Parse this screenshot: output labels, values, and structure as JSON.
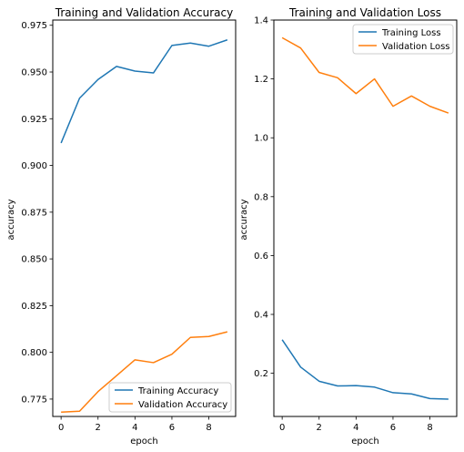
{
  "chart_data": [
    {
      "type": "line",
      "title": "Training and Validation Accuracy",
      "xlabel": "epoch",
      "ylabel": "accuracy",
      "x": [
        0,
        1,
        2,
        3,
        4,
        5,
        6,
        7,
        8,
        9
      ],
      "xlim": [
        -0.45,
        9.45
      ],
      "ylim": [
        0.7657,
        0.9778
      ],
      "xticks": [
        "0",
        "2",
        "4",
        "6",
        "8"
      ],
      "xtick_values": [
        0,
        2,
        4,
        6,
        8
      ],
      "yticks": [
        "0.775",
        "0.800",
        "0.825",
        "0.850",
        "0.875",
        "0.900",
        "0.925",
        "0.950",
        "0.975"
      ],
      "ytick_values": [
        0.775,
        0.8,
        0.825,
        0.85,
        0.875,
        0.9,
        0.925,
        0.95,
        0.975
      ],
      "legend_position": "lower-right",
      "series": [
        {
          "name": "Training Accuracy",
          "color": "#1f77b4",
          "values": [
            0.912,
            0.936,
            0.946,
            0.953,
            0.9505,
            0.9495,
            0.9642,
            0.9655,
            0.9638,
            0.9672
          ]
        },
        {
          "name": "Validation Accuracy",
          "color": "#ff7f0e",
          "values": [
            0.768,
            0.7685,
            0.779,
            0.7875,
            0.796,
            0.7945,
            0.799,
            0.808,
            0.8085,
            0.811
          ]
        }
      ]
    },
    {
      "type": "line",
      "title": "Training and Validation Loss",
      "xlabel": "epoch",
      "ylabel": "accuracy",
      "x": [
        0,
        1,
        2,
        3,
        4,
        5,
        6,
        7,
        8,
        9
      ],
      "xlim": [
        -0.45,
        9.45
      ],
      "ylim": [
        0.0533,
        1.4
      ],
      "xticks": [
        "0",
        "2",
        "4",
        "6",
        "8"
      ],
      "xtick_values": [
        0,
        2,
        4,
        6,
        8
      ],
      "yticks": [
        "0.2",
        "0.4",
        "0.6",
        "0.8",
        "1.0",
        "1.2",
        "1.4"
      ],
      "ytick_values": [
        0.2,
        0.4,
        0.6,
        0.8,
        1.0,
        1.2,
        1.4
      ],
      "legend_position": "upper-right",
      "series": [
        {
          "name": "Training Loss",
          "color": "#1f77b4",
          "values": [
            0.314,
            0.221,
            0.173,
            0.157,
            0.158,
            0.153,
            0.134,
            0.13,
            0.114,
            0.112
          ]
        },
        {
          "name": "Validation Loss",
          "color": "#ff7f0e",
          "values": [
            1.34,
            1.305,
            1.222,
            1.204,
            1.15,
            1.2,
            1.107,
            1.142,
            1.107,
            1.084
          ]
        }
      ]
    }
  ]
}
